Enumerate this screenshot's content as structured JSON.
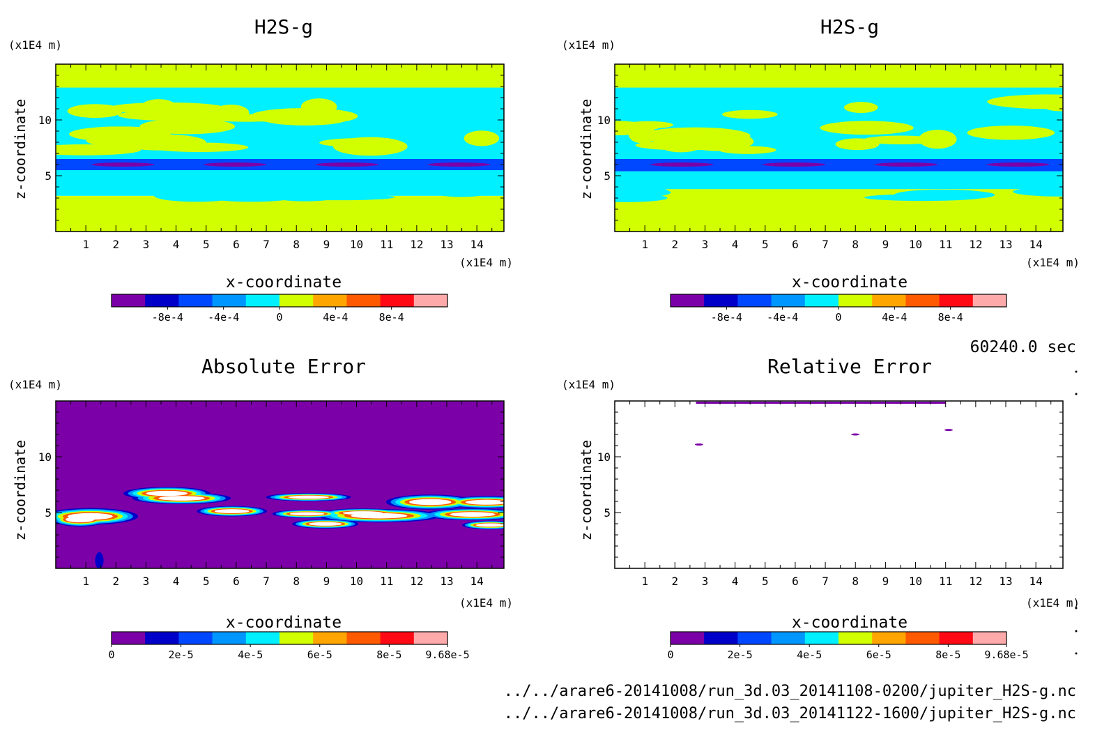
{
  "palette": {
    "c0": "#7c00a8",
    "c1": "#0000c8",
    "c2": "#0048ff",
    "c3": "#0096ff",
    "c4": "#00f0ff",
    "c5": "#d2ff00",
    "c6": "#ffa500",
    "c7": "#ff5a00",
    "c8": "#ff0a14",
    "c9": "#ffaaaa",
    "white": "#ffffff"
  },
  "time_label": "60240.0 sec",
  "files": [
    "../../arare6-20141008/run_3d.03_20141108-0200/jupiter_H2S-g.nc",
    "../../arare6-20141008/run_3d.03_20141122-1600/jupiter_H2S-g.nc"
  ],
  "chart_data": [
    {
      "type": "heatmap",
      "title": "H2S-g",
      "xlabel": "x-coordinate",
      "ylabel": "z-coordinate",
      "x_unit": "(x1E4 m)",
      "y_unit": "(x1E4 m)",
      "xlim": [
        0,
        14.9
      ],
      "ylim": [
        0,
        15
      ],
      "x_ticks": [
        "1",
        "2",
        "3",
        "4",
        "5",
        "6",
        "7",
        "8",
        "9",
        "10",
        "11",
        "12",
        "13",
        "14"
      ],
      "y_ticks": [
        "5",
        "10"
      ],
      "colorbar": {
        "min": -0.0012,
        "max": 0.0012,
        "levels": 10,
        "tick_values": [
          -0.0008,
          -0.0004,
          0,
          0.0004,
          0.0008
        ],
        "tick_labels": [
          "-8e-4",
          "-4e-4",
          "0",
          "4e-4",
          "8e-4"
        ]
      },
      "field": "base",
      "bands": [
        {
          "z_range": [
            0,
            3.2
          ],
          "value": 0.00012
        },
        {
          "z_range": [
            3.2,
            5.5
          ],
          "value": -0.00012
        },
        {
          "z_range": [
            5.5,
            6.5
          ],
          "value": -0.0006
        },
        {
          "z_range": [
            6.5,
            12.6
          ],
          "value": -0.00012
        },
        {
          "z_range": [
            12.6,
            15
          ],
          "value": 0.00012
        }
      ]
    },
    {
      "type": "heatmap",
      "title": "H2S-g",
      "xlabel": "x-coordinate",
      "ylabel": "z-coordinate",
      "x_unit": "(x1E4 m)",
      "y_unit": "(x1E4 m)",
      "xlim": [
        0,
        14.9
      ],
      "ylim": [
        0,
        15
      ],
      "x_ticks": [
        "1",
        "2",
        "3",
        "4",
        "5",
        "6",
        "7",
        "8",
        "9",
        "10",
        "11",
        "12",
        "13",
        "14"
      ],
      "y_ticks": [
        "5",
        "10"
      ],
      "colorbar": {
        "min": -0.0012,
        "max": 0.0012,
        "levels": 10,
        "tick_values": [
          -0.0008,
          -0.0004,
          0,
          0.0004,
          0.0008
        ],
        "tick_labels": [
          "-8e-4",
          "-4e-4",
          "0",
          "4e-4",
          "8e-4"
        ]
      },
      "field": "base",
      "bands": [
        {
          "z_range": [
            0,
            3.8
          ],
          "value": 0.00012
        },
        {
          "z_range": [
            3.8,
            5.4
          ],
          "value": -0.00012
        },
        {
          "z_range": [
            5.4,
            6.5
          ],
          "value": -0.0006
        },
        {
          "z_range": [
            6.5,
            12.6
          ],
          "value": -0.00012
        },
        {
          "z_range": [
            12.6,
            15
          ],
          "value": 0.00012
        }
      ]
    },
    {
      "type": "heatmap",
      "title": "Absolute Error",
      "xlabel": "x-coordinate",
      "ylabel": "z-coordinate",
      "x_unit": "(x1E4 m)",
      "y_unit": "(x1E4 m)",
      "xlim": [
        0,
        14.9
      ],
      "ylim": [
        0,
        15
      ],
      "x_ticks": [
        "1",
        "2",
        "3",
        "4",
        "5",
        "6",
        "7",
        "8",
        "9",
        "10",
        "11",
        "12",
        "13",
        "14"
      ],
      "y_ticks": [
        "5",
        "10"
      ],
      "colorbar": {
        "min": 0,
        "max": 9.68e-05,
        "levels": 10,
        "tick_values": [
          0,
          2e-05,
          4e-05,
          6e-05,
          8e-05,
          9.68e-05
        ],
        "tick_labels": [
          "0",
          "2e-5",
          "4e-5",
          "6e-5",
          "8e-5",
          "9.68e-5"
        ]
      },
      "field": "error",
      "background_value": 0,
      "error_band_z": [
        3.4,
        6.9
      ],
      "peak_value": 9.68e-05
    },
    {
      "type": "heatmap",
      "title": "Relative Error",
      "xlabel": "x-coordinate",
      "ylabel": "z-coordinate",
      "x_unit": "(x1E4 m)",
      "y_unit": "(x1E4 m)",
      "xlim": [
        0,
        14.9
      ],
      "ylim": [
        0,
        15
      ],
      "x_ticks": [
        "1",
        "2",
        "3",
        "4",
        "5",
        "6",
        "7",
        "8",
        "9",
        "10",
        "11",
        "12",
        "13",
        "14"
      ],
      "y_ticks": [
        "5",
        "10"
      ],
      "colorbar": {
        "min": 0,
        "max": 9.68e-05,
        "levels": 10,
        "tick_values": [
          0,
          2e-05,
          4e-05,
          6e-05,
          8e-05,
          9.68e-05
        ],
        "tick_labels": [
          "0",
          "2e-5",
          "4e-5",
          "6e-5",
          "8e-5",
          "9.68e-5"
        ]
      },
      "field": "relative",
      "background": "white",
      "spots": [
        {
          "x": 2.8,
          "z": 11.1,
          "value": 0
        },
        {
          "x": 8.0,
          "z": 12.0,
          "value": 0
        },
        {
          "x": 11.1,
          "z": 12.4,
          "value": 0
        }
      ]
    }
  ]
}
